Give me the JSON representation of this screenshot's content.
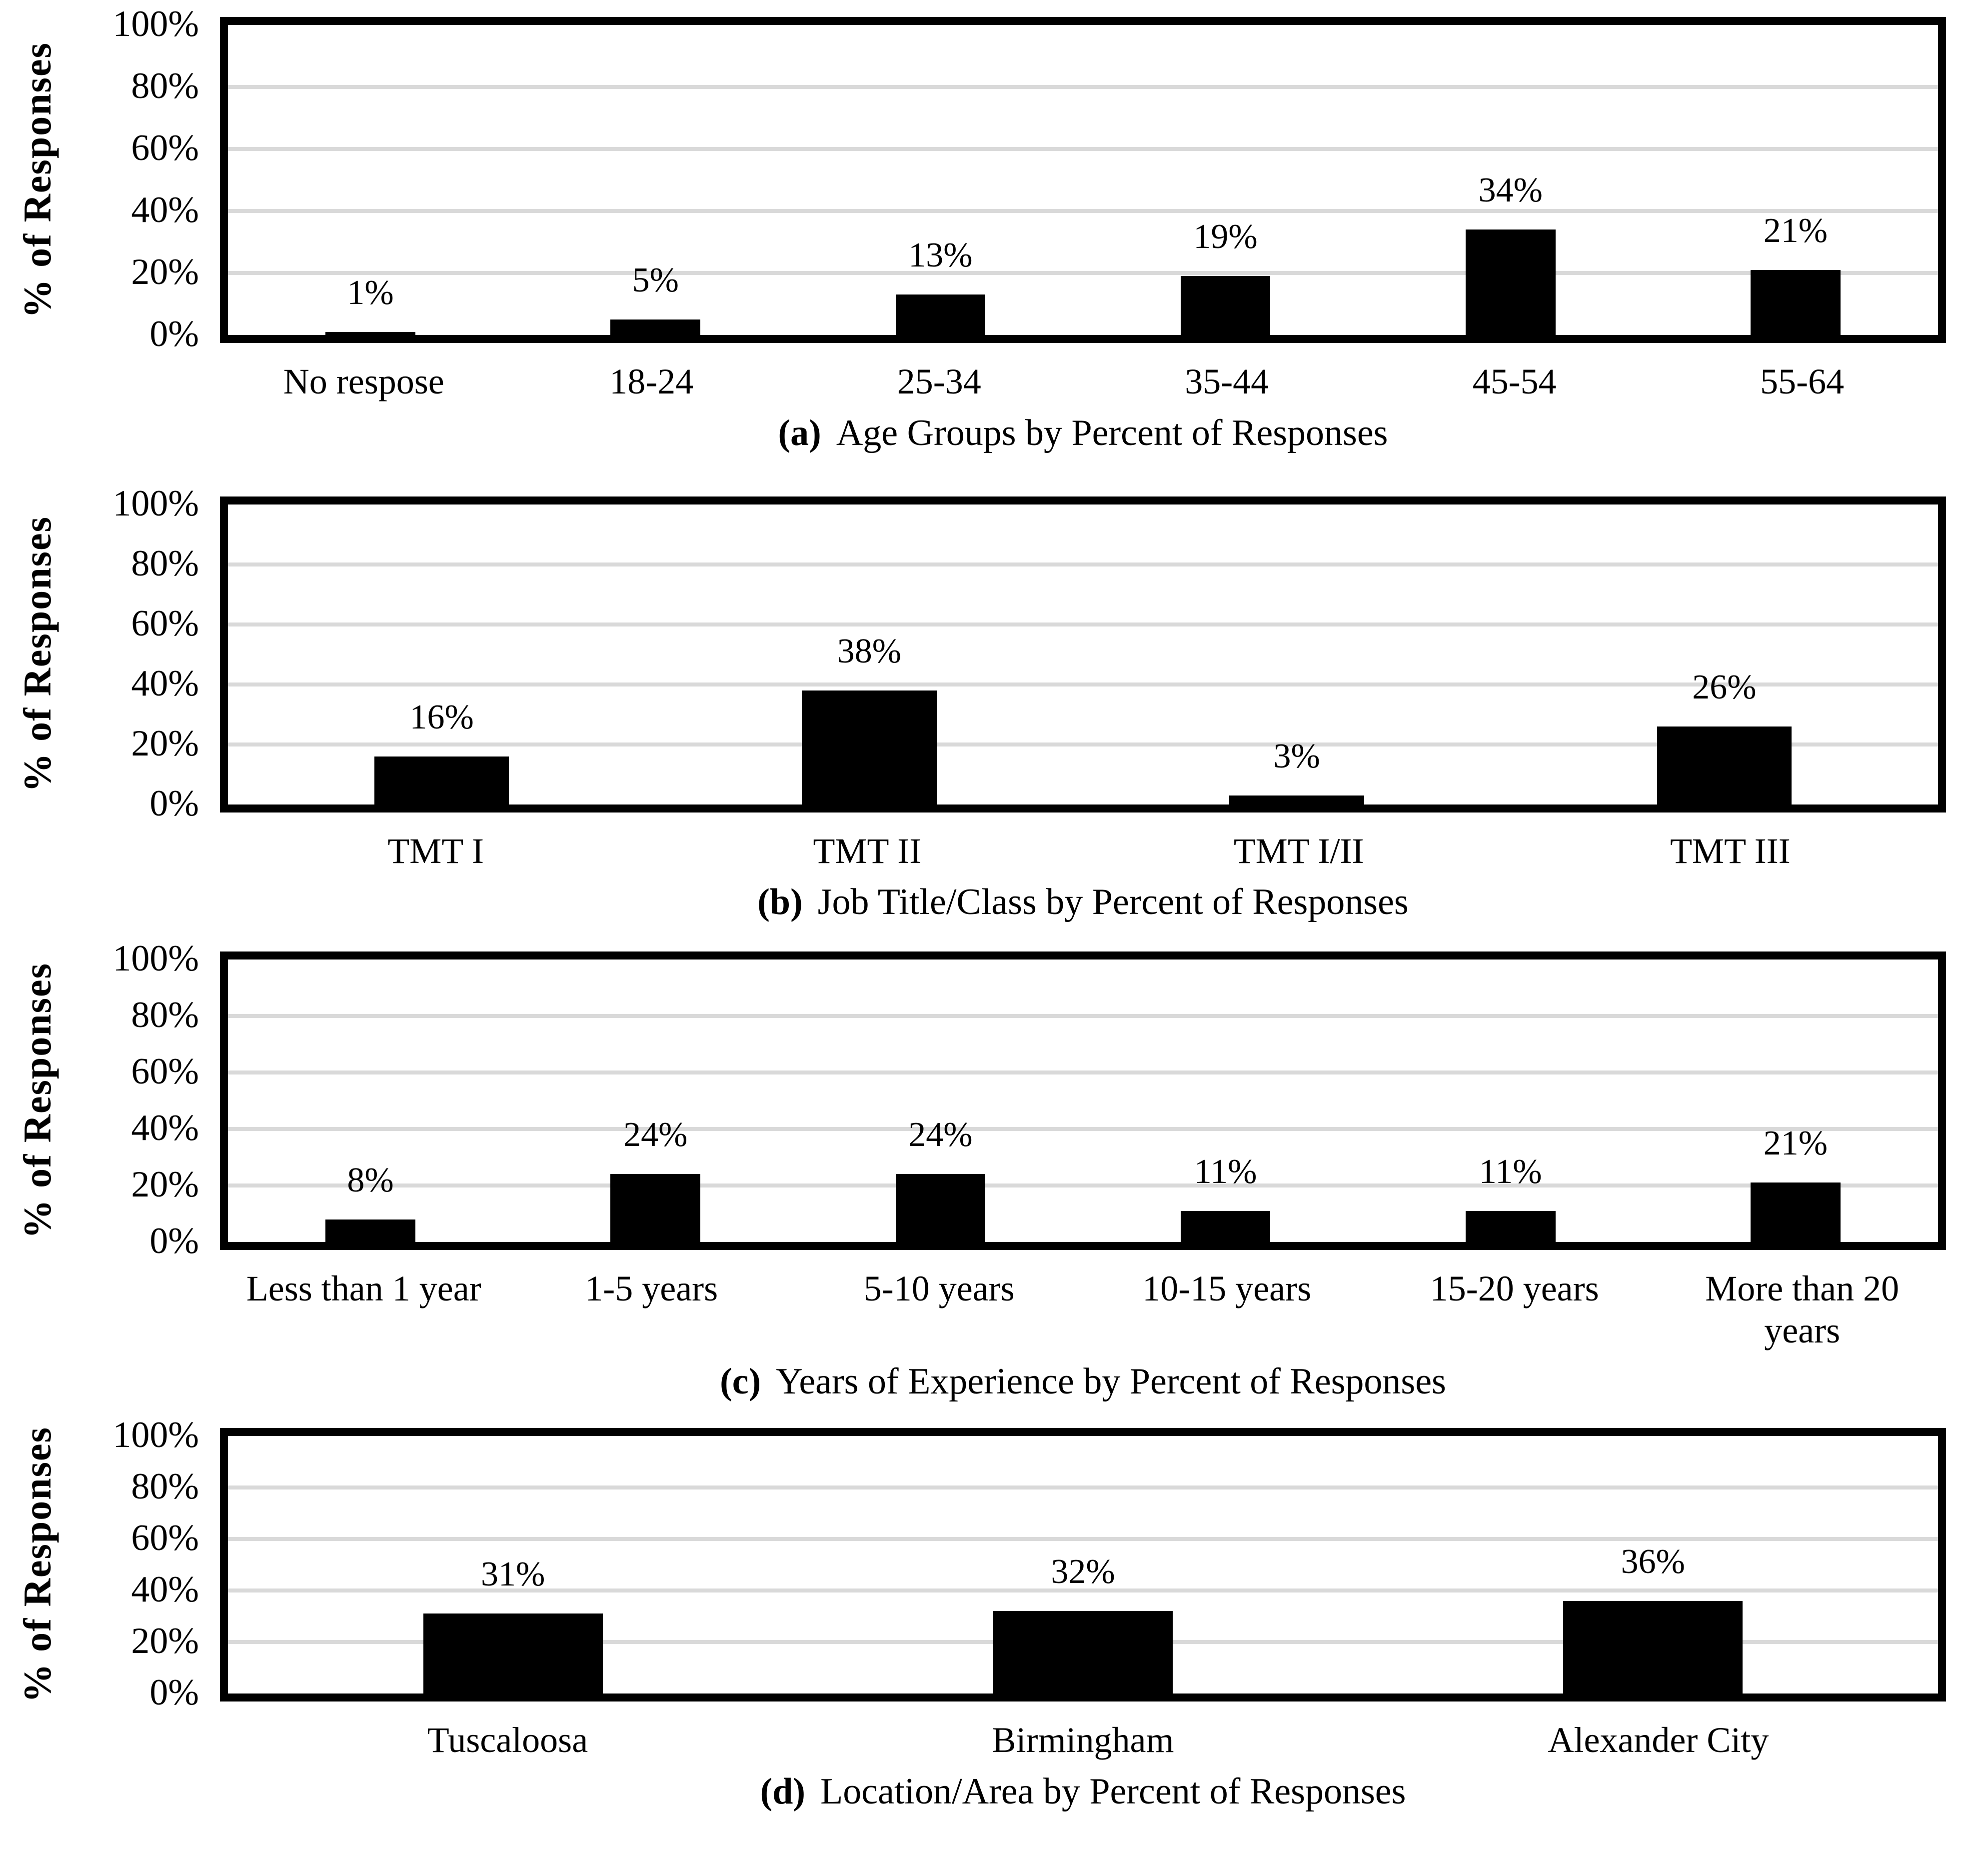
{
  "page": {
    "background": "#ffffff"
  },
  "colors": {
    "bar": "#000000",
    "gridline": "#d9d9d9",
    "plot_border": "#000000",
    "text": "#000000"
  },
  "chart_data": [
    {
      "type": "bar",
      "id": "a",
      "caption_label": "(a)",
      "caption_text": "Age Groups by Percent of Responses",
      "ylabel": "% of Responses",
      "ylim": [
        0,
        100
      ],
      "ytick_labels": [
        "100%",
        "80%",
        "60%",
        "40%",
        "20%",
        "0%"
      ],
      "ygrid_percent": [
        20,
        40,
        60,
        80
      ],
      "legend": "none",
      "categories": [
        "No respose",
        "18-24",
        "25-34",
        "35-44",
        "45-54",
        "55-64"
      ],
      "values": [
        1,
        5,
        13,
        19,
        34,
        21
      ],
      "value_labels": [
        "1%",
        "5%",
        "13%",
        "19%",
        "34%",
        "21%"
      ]
    },
    {
      "type": "bar",
      "id": "b",
      "caption_label": "(b)",
      "caption_text": "Job Title/Class by Percent of Responses",
      "ylabel": "% of Responses",
      "ylim": [
        0,
        100
      ],
      "ytick_labels": [
        "100%",
        "80%",
        "60%",
        "40%",
        "20%",
        "0%"
      ],
      "ygrid_percent": [
        20,
        40,
        60,
        80
      ],
      "legend": "none",
      "categories": [
        "TMT I",
        "TMT II",
        "TMT I/II",
        "TMT III"
      ],
      "values": [
        16,
        38,
        3,
        26
      ],
      "value_labels": [
        "16%",
        "38%",
        "3%",
        "26%"
      ]
    },
    {
      "type": "bar",
      "id": "c",
      "caption_label": "(c)",
      "caption_text": "Years of Experience by Percent of Responses",
      "ylabel": "% of Responses",
      "ylim": [
        0,
        100
      ],
      "ytick_labels": [
        "100%",
        "80%",
        "60%",
        "40%",
        "20%",
        "0%"
      ],
      "ygrid_percent": [
        20,
        40,
        60,
        80
      ],
      "legend": "none",
      "categories": [
        "Less than 1 year",
        "1-5 years",
        "5-10 years",
        "10-15 years",
        "15-20 years",
        "More than 20\nyears"
      ],
      "values": [
        8,
        24,
        24,
        11,
        11,
        21
      ],
      "value_labels": [
        "8%",
        "24%",
        "24%",
        "11%",
        "11%",
        "21%"
      ]
    },
    {
      "type": "bar",
      "id": "d",
      "caption_label": "(d)",
      "caption_text": "Location/Area by Percent of Responses",
      "ylabel": "% of Responses",
      "ylim": [
        0,
        100
      ],
      "ytick_labels": [
        "100%",
        "80%",
        "60%",
        "40%",
        "20%",
        "0%"
      ],
      "ygrid_percent": [
        20,
        40,
        60,
        80
      ],
      "legend": "none",
      "categories": [
        "Tuscaloosa",
        "Birmingham",
        "Alexander City"
      ],
      "values": [
        31,
        32,
        36
      ],
      "value_labels": [
        "31%",
        "32%",
        "36%"
      ]
    }
  ]
}
